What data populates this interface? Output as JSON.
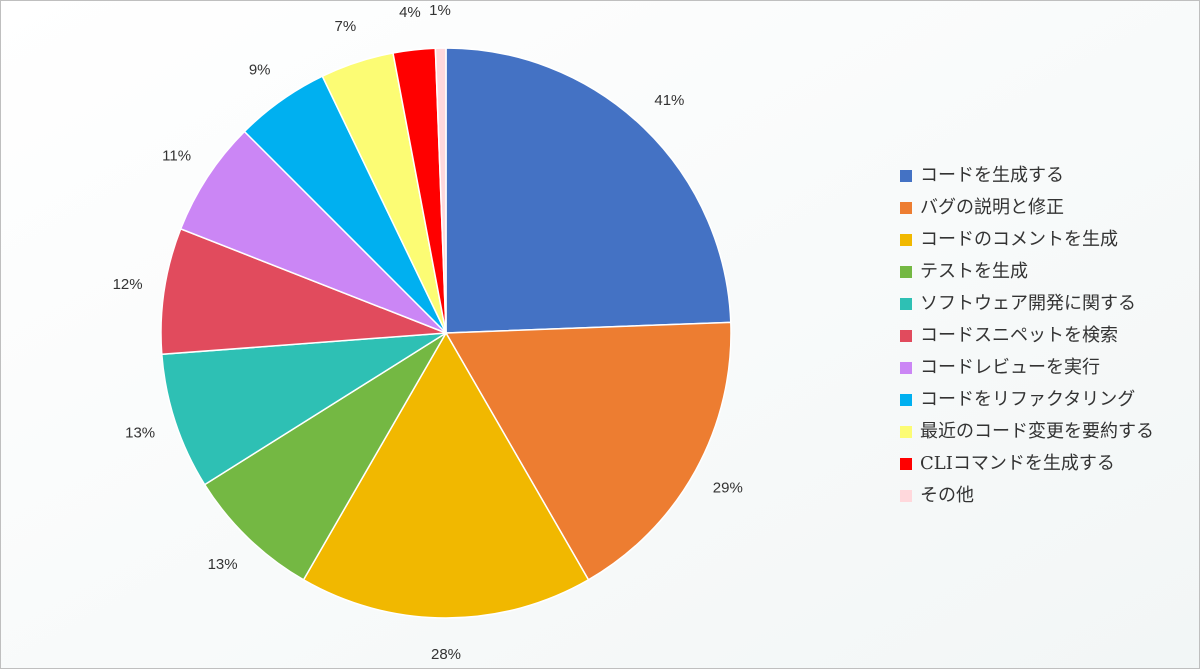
{
  "chart_data": {
    "type": "pie",
    "categories": [
      "コードを生成する",
      "バグの説明と修正",
      "コードのコメントを生成",
      "テストを生成",
      "ソフトウェア開発に関する",
      "コードスニペットを検索",
      "コードレビューを実行",
      "コードをリファクタリング",
      "最近のコード変更を要約する",
      "CLIコマンドを生成する",
      "その他"
    ],
    "values": [
      41,
      29,
      28,
      13,
      13,
      12,
      11,
      9,
      7,
      4,
      1
    ],
    "value_labels": [
      "41%",
      "29%",
      "28%",
      "13%",
      "13%",
      "12%",
      "11%",
      "9%",
      "7%",
      "4%",
      "1%"
    ],
    "colors": [
      "#4472C4",
      "#ED7D31",
      "#F1B800",
      "#74B843",
      "#2EC0B4",
      "#E14B5D",
      "#CB86F5",
      "#00B0F0",
      "#FCFC74",
      "#FF0000",
      "#FFD8DC"
    ],
    "legend": "right"
  }
}
